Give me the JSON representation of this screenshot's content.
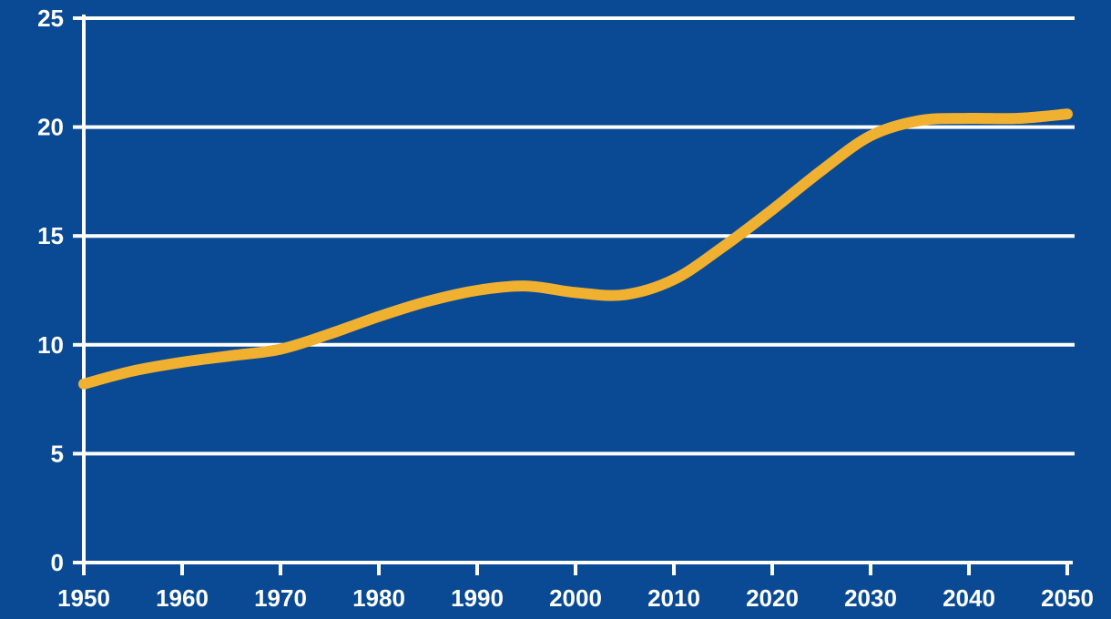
{
  "colors": {
    "background": "#0a4a94",
    "grid": "#ffffff",
    "axis": "#ffffff",
    "line": "#f0b030",
    "text": "#ffffff"
  },
  "chart_data": {
    "type": "line",
    "title": "",
    "xlabel": "",
    "ylabel": "",
    "xlim": [
      1950,
      2050
    ],
    "ylim": [
      0,
      25
    ],
    "grid": true,
    "legend": "none",
    "x_ticks": [
      "1950",
      "1960",
      "1970",
      "1980",
      "1990",
      "2000",
      "2010",
      "2020",
      "2030",
      "2040",
      "2050"
    ],
    "y_ticks": [
      "0",
      "5",
      "10",
      "15",
      "20",
      "25"
    ],
    "series": [
      {
        "x": [
          1950,
          1955,
          1960,
          1965,
          1970,
          1975,
          1980,
          1985,
          1990,
          1995,
          2000,
          2005,
          2010,
          2015,
          2020,
          2025,
          2030,
          2035,
          2040,
          2045,
          2050
        ],
        "values": [
          8.2,
          8.8,
          9.2,
          9.5,
          9.8,
          10.5,
          11.3,
          12.0,
          12.5,
          12.7,
          12.4,
          12.3,
          13.0,
          14.5,
          16.2,
          18.0,
          19.6,
          20.3,
          20.4,
          20.4,
          20.6
        ]
      }
    ]
  }
}
